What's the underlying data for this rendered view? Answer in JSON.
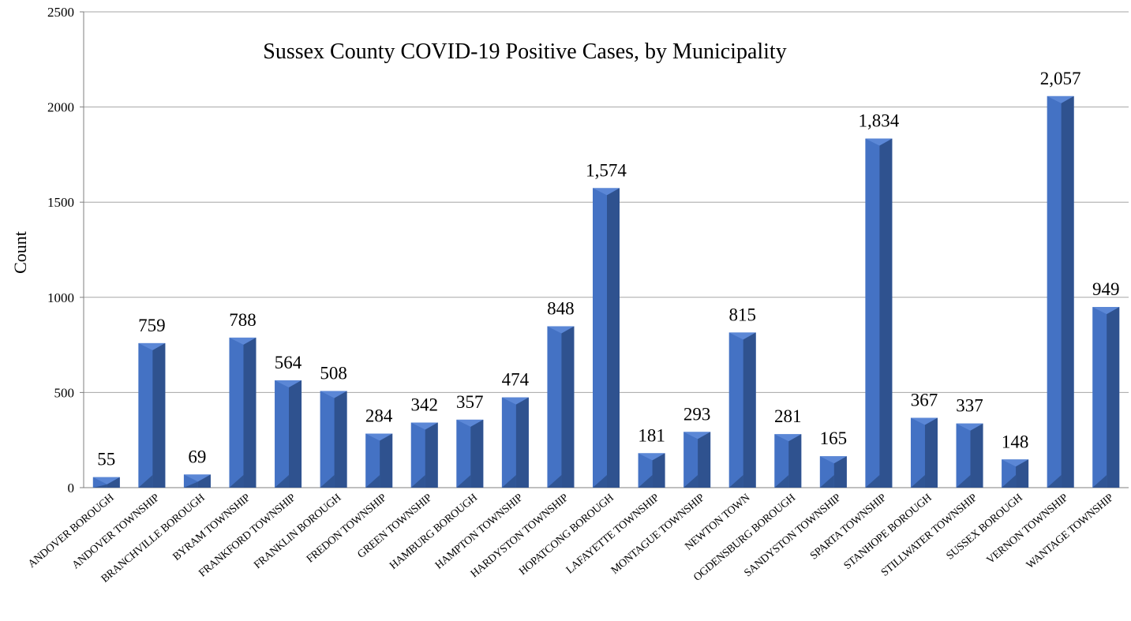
{
  "chart_data": {
    "type": "bar",
    "title": "Sussex County COVID-19 Positive Cases, by Municipality",
    "xlabel": "",
    "ylabel": "Count",
    "ylim": [
      0,
      2500
    ],
    "yticks": [
      "0",
      "500",
      "1000",
      "1500",
      "2000",
      "2500"
    ],
    "grid": true,
    "categories": [
      "ANDOVER BOROUGH",
      "ANDOVER TOWNSHIP",
      "BRANCHVILLE BOROUGH",
      "BYRAM TOWNSHIP",
      "FRANKFORD TOWNSHIP",
      "FRANKLIN BOROUGH",
      "FREDON TOWNSHIP",
      "GREEN TOWNSHIP",
      "HAMBURG BOROUGH",
      "HAMPTON TOWNSHIP",
      "HARDYSTON TOWNSHIP",
      "HOPATCONG BOROUGH",
      "LAFAYETTE TOWNSHIP",
      "MONTAGUE TOWNSHIP",
      "NEWTON TOWN",
      "OGDENSBURG BOROUGH",
      "SANDYSTON TOWNSHIP",
      "SPARTA TOWNSHIP",
      "STANHOPE BOROUGH",
      "STILLWATER TOWNSHIP",
      "SUSSEX BOROUGH",
      "VERNON TOWNSHIP",
      "WANTAGE TOWNSHIP"
    ],
    "values": [
      55,
      759,
      69,
      788,
      564,
      508,
      284,
      342,
      357,
      474,
      848,
      1574,
      181,
      293,
      815,
      281,
      165,
      1834,
      367,
      337,
      148,
      2057,
      949
    ],
    "data_labels": [
      "55",
      "759",
      "69",
      "788",
      "564",
      "508",
      "284",
      "342",
      "357",
      "474",
      "848",
      "1,574",
      "181",
      "293",
      "815",
      "281",
      "165",
      "1,834",
      "367",
      "337",
      "148",
      "2,057",
      "949"
    ],
    "colors": {
      "front": "#4472C4",
      "side": "#2F528F",
      "top": "#5B87D6",
      "grid": "#A6A6A6",
      "axis": "#7F7F7F"
    }
  }
}
